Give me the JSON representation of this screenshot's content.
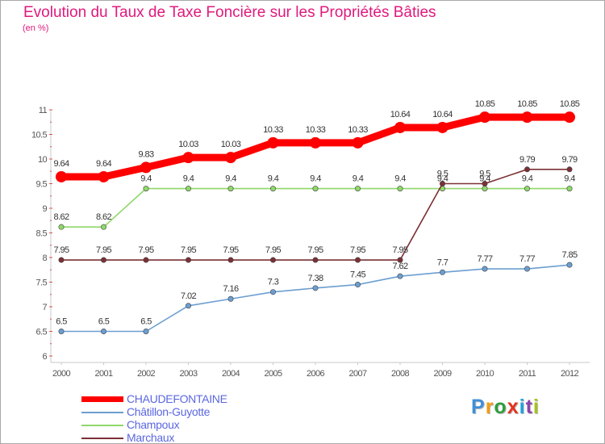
{
  "chart_data": {
    "type": "line",
    "title": "Evolution du Taux de Taxe Foncière sur les Propriétés Bâties",
    "ylabel": "(en %)",
    "xlabel": "",
    "categories": [
      "2000",
      "2001",
      "2002",
      "2003",
      "2004",
      "2005",
      "2006",
      "2007",
      "2008",
      "2009",
      "2010",
      "2011",
      "2012"
    ],
    "ylim": [
      6,
      11
    ],
    "yticks": [
      "6",
      "6.5",
      "7",
      "7.5",
      "8",
      "8.5",
      "9",
      "9.5",
      "10",
      "10.5",
      "11"
    ],
    "grid": false,
    "legend_position": "bottom-left",
    "series": [
      {
        "name": "CHAUDEFONTAINE",
        "color": "#ff0000",
        "values": [
          9.64,
          9.64,
          9.83,
          10.03,
          10.03,
          10.33,
          10.33,
          10.33,
          10.64,
          10.64,
          10.85,
          10.85,
          10.85
        ],
        "labels": [
          "9.64",
          "9.64",
          "9.83",
          "10.03",
          "10.03",
          "10.33",
          "10.33",
          "10.33",
          "10.64",
          "10.64",
          "10.85",
          "10.85",
          "10.85"
        ]
      },
      {
        "name": "Châtillon-Guyotte",
        "color": "#6c9ed1",
        "values": [
          6.5,
          6.5,
          6.5,
          7.02,
          7.16,
          7.3,
          7.38,
          7.45,
          7.62,
          7.7,
          7.77,
          7.77,
          7.85
        ],
        "labels": [
          "6.5",
          "6.5",
          "6.5",
          "7.02",
          "7.16",
          "7.3",
          "7.38",
          "7.45",
          "7.62",
          "7.7",
          "7.77",
          "7.77",
          "7.85"
        ]
      },
      {
        "name": "Champoux",
        "color": "#8fd86a",
        "values": [
          8.62,
          8.62,
          9.4,
          9.4,
          9.4,
          9.4,
          9.4,
          9.4,
          9.4,
          9.4,
          9.4,
          9.4,
          9.4
        ],
        "labels": [
          "8.62",
          "8.62",
          "9.4",
          "9.4",
          "9.4",
          "9.4",
          "9.4",
          "9.4",
          "9.4",
          "9.4",
          "9.4",
          "9.4",
          "9.4"
        ]
      },
      {
        "name": "Marchaux",
        "color": "#7b3035",
        "values": [
          7.95,
          7.95,
          7.95,
          7.95,
          7.95,
          7.95,
          7.95,
          7.95,
          7.95,
          9.5,
          9.5,
          9.79,
          9.79
        ],
        "labels": [
          "7.95",
          "7.95",
          "7.95",
          "7.95",
          "7.95",
          "7.95",
          "7.95",
          "7.95",
          "7.95",
          "9.5",
          "9.5",
          "9.79",
          "9.79"
        ]
      }
    ]
  },
  "logo": {
    "letters": [
      "P",
      "r",
      "o",
      "x",
      "i",
      "t",
      "i"
    ],
    "colors": [
      "#3f8fd8",
      "#f39c12",
      "#2e9e3e",
      "#e5321e",
      "#1f9fdc",
      "#8e44ad",
      "#a5c21b"
    ]
  }
}
